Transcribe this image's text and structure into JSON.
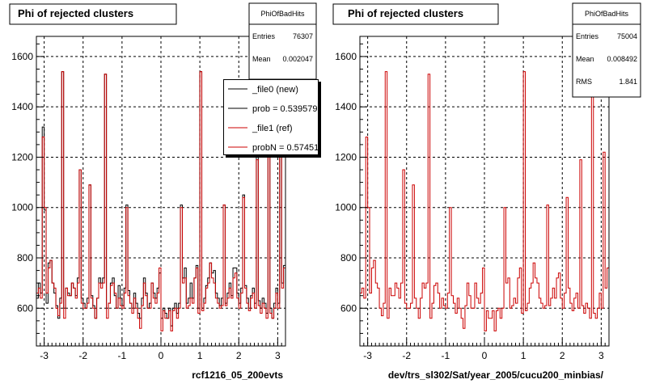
{
  "footer_text": "",
  "colors": {
    "new": "#000000",
    "ref": "#cc0000"
  },
  "chart_data": [
    {
      "type": "histogram",
      "title": "Phi of rejected clusters",
      "xlabel": "rcf1216_05_200evts",
      "ylabel": "",
      "xlim": [
        -3.2,
        3.2
      ],
      "ylim": [
        450,
        1680
      ],
      "xticks": [
        -3,
        -2,
        -1,
        0,
        1,
        2,
        3
      ],
      "yticks": [
        600,
        800,
        1000,
        1200,
        1400,
        1600
      ],
      "grid": true,
      "stats": {
        "title": "PhiOfBadHits",
        "rows": [
          {
            "label": "Entries",
            "value": "76307"
          },
          {
            "label": "Mean",
            "value": "0.002047"
          }
        ]
      },
      "legend": {
        "position": "top-right",
        "entries": [
          {
            "text": "_file0 (new)",
            "color": "#000000"
          },
          {
            "text": "prob = 0.539579",
            "color": "#000000"
          },
          {
            "text": "_file1 (ref)",
            "color": "#cc0000"
          },
          {
            "text": "probN = 0.574511",
            "color": "#cc0000"
          }
        ]
      },
      "bins": {
        "xmin": -3.2,
        "xmax": 3.2,
        "n": 128
      },
      "series": [
        {
          "name": "_file0 (new)",
          "color": "#000000",
          "values": [
            640,
            700,
            660,
            1320,
            990,
            620,
            780,
            790,
            700,
            660,
            610,
            560,
            640,
            1540,
            600,
            680,
            660,
            650,
            700,
            680,
            650,
            720,
            1150,
            640,
            620,
            600,
            640,
            1090,
            650,
            610,
            560,
            640,
            720,
            700,
            720,
            1530,
            600,
            620,
            700,
            720,
            650,
            600,
            690,
            640,
            610,
            680,
            1010,
            670,
            620,
            600,
            660,
            620,
            580,
            560,
            640,
            720,
            660,
            600,
            620,
            700,
            660,
            640,
            680,
            740,
            560,
            600,
            580,
            560,
            600,
            530,
            600,
            620,
            580,
            620,
            1010,
            720,
            760,
            620,
            640,
            700,
            640,
            720,
            770,
            600,
            1540,
            600,
            640,
            690,
            720,
            780,
            740,
            750,
            660,
            640,
            610,
            640,
            1010,
            620,
            660,
            700,
            650,
            760,
            760,
            660,
            620,
            680,
            1050,
            690,
            640,
            600,
            650,
            680,
            620,
            1200,
            630,
            600,
            640,
            620,
            580,
            1620,
            600,
            560,
            620,
            680,
            620,
            1200,
            700,
            770
          ]
        },
        {
          "name": "_file1 (ref)",
          "color": "#cc0000",
          "values": [
            660,
            680,
            640,
            1280,
            1000,
            660,
            760,
            790,
            700,
            680,
            600,
            570,
            620,
            1540,
            560,
            680,
            650,
            650,
            700,
            680,
            640,
            700,
            1150,
            620,
            600,
            600,
            620,
            1090,
            640,
            600,
            560,
            640,
            700,
            680,
            700,
            1530,
            560,
            620,
            690,
            700,
            660,
            600,
            640,
            610,
            600,
            660,
            1000,
            650,
            620,
            580,
            640,
            600,
            560,
            520,
            610,
            700,
            650,
            600,
            600,
            700,
            640,
            620,
            660,
            760,
            510,
            590,
            560,
            560,
            590,
            510,
            590,
            600,
            560,
            600,
            1000,
            700,
            720,
            600,
            610,
            640,
            620,
            720,
            760,
            580,
            1540,
            590,
            620,
            680,
            700,
            780,
            720,
            700,
            640,
            620,
            600,
            610,
            1010,
            610,
            640,
            680,
            640,
            720,
            740,
            640,
            600,
            660,
            1040,
            680,
            620,
            590,
            640,
            660,
            600,
            1190,
            610,
            580,
            620,
            600,
            560,
            1620,
            580,
            560,
            600,
            660,
            600,
            1220,
            680,
            760
          ]
        }
      ]
    },
    {
      "type": "histogram",
      "title": "Phi of rejected clusters",
      "xlabel": "dev/trs_sl302/Sat/year_2005/cucu200_minbias/",
      "ylabel": "",
      "xlim": [
        -3.2,
        3.2
      ],
      "ylim": [
        450,
        1680
      ],
      "xticks": [
        -3,
        -2,
        -1,
        0,
        1,
        2,
        3
      ],
      "yticks": [
        600,
        800,
        1000,
        1200,
        1400,
        1600
      ],
      "grid": true,
      "stats": {
        "title": "PhiOfBadHits",
        "rows": [
          {
            "label": "Entries",
            "value": "75004"
          },
          {
            "label": "Mean",
            "value": "0.008492"
          },
          {
            "label": "RMS",
            "value": "1.841"
          }
        ]
      },
      "legend": null,
      "bins": {
        "xmin": -3.2,
        "xmax": 3.2,
        "n": 128
      },
      "series": [
        {
          "name": "",
          "color": "#cc0000",
          "values": [
            660,
            680,
            640,
            1280,
            1000,
            660,
            760,
            790,
            700,
            680,
            600,
            570,
            620,
            1540,
            560,
            680,
            650,
            650,
            700,
            680,
            640,
            700,
            1150,
            620,
            600,
            600,
            620,
            1090,
            640,
            600,
            560,
            640,
            700,
            680,
            700,
            1530,
            560,
            620,
            690,
            700,
            660,
            600,
            640,
            610,
            600,
            660,
            1000,
            650,
            620,
            580,
            640,
            600,
            560,
            520,
            610,
            700,
            650,
            600,
            600,
            700,
            640,
            620,
            660,
            760,
            510,
            590,
            560,
            560,
            590,
            510,
            590,
            600,
            560,
            600,
            1000,
            700,
            720,
            600,
            610,
            640,
            620,
            720,
            760,
            580,
            1540,
            590,
            620,
            680,
            700,
            780,
            720,
            700,
            640,
            620,
            600,
            610,
            1010,
            610,
            640,
            680,
            640,
            720,
            740,
            640,
            600,
            660,
            1040,
            680,
            620,
            590,
            640,
            660,
            600,
            1190,
            610,
            580,
            620,
            600,
            560,
            1620,
            580,
            560,
            600,
            660,
            600,
            1220,
            680,
            760
          ]
        }
      ]
    }
  ]
}
